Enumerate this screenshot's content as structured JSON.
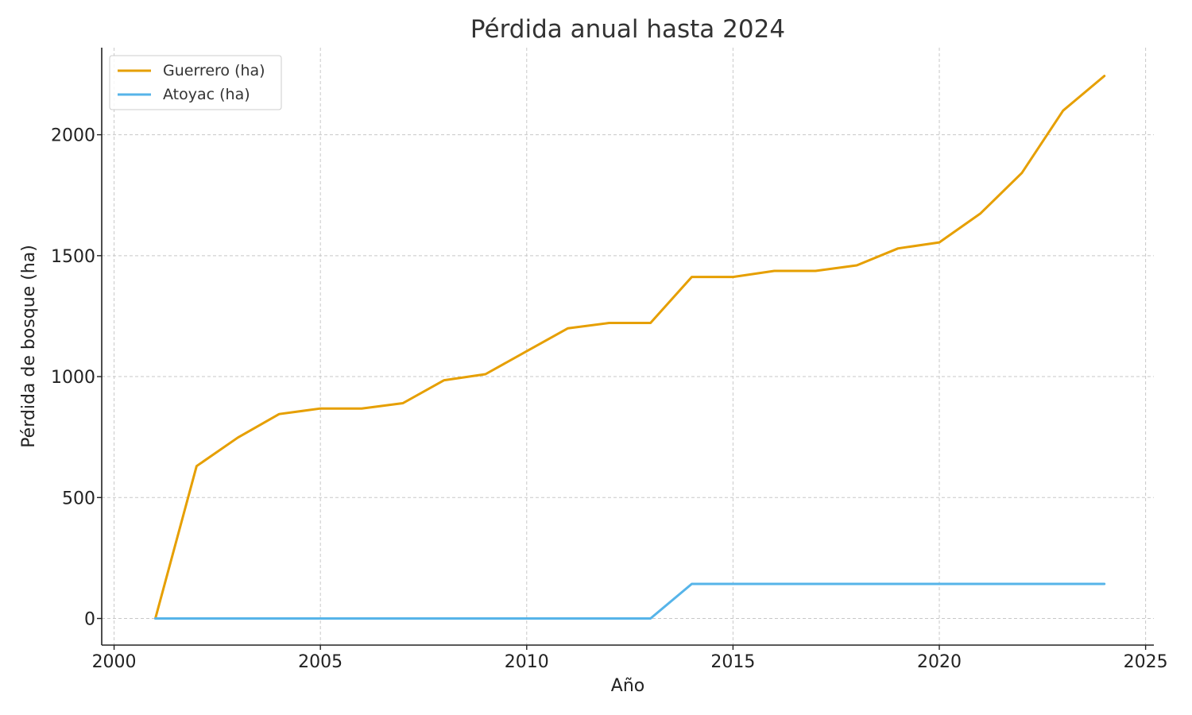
{
  "chart_data": {
    "type": "line",
    "title": "Pérdida anual hasta 2024",
    "xlabel": "Año",
    "ylabel": "Pérdida de bosque (ha)",
    "xlim": [
      1999.7,
      2025.2
    ],
    "ylim": [
      -110,
      2360
    ],
    "xticks": [
      2000,
      2005,
      2010,
      2015,
      2020,
      2025
    ],
    "yticks": [
      0,
      500,
      1000,
      1500,
      2000
    ],
    "grid": true,
    "legend_position": "top-left",
    "x": [
      2001,
      2002,
      2003,
      2004,
      2005,
      2006,
      2007,
      2008,
      2009,
      2010,
      2011,
      2012,
      2013,
      2014,
      2015,
      2016,
      2017,
      2018,
      2019,
      2020,
      2021,
      2022,
      2023,
      2024
    ],
    "series": [
      {
        "name": "Guerrero (ha)",
        "color": "#E69F00",
        "values": [
          0,
          630,
          748,
          845,
          868,
          868,
          890,
          985,
          1010,
          1105,
          1200,
          1222,
          1222,
          1412,
          1412,
          1437,
          1437,
          1460,
          1530,
          1555,
          1675,
          1842,
          2100,
          2243
        ]
      },
      {
        "name": "Atoyac (ha)",
        "color": "#56B4E9",
        "values": [
          0,
          0,
          0,
          0,
          0,
          0,
          0,
          0,
          0,
          0,
          0,
          0,
          0,
          143,
          143,
          143,
          143,
          143,
          143,
          143,
          143,
          143,
          143,
          143
        ]
      }
    ]
  }
}
